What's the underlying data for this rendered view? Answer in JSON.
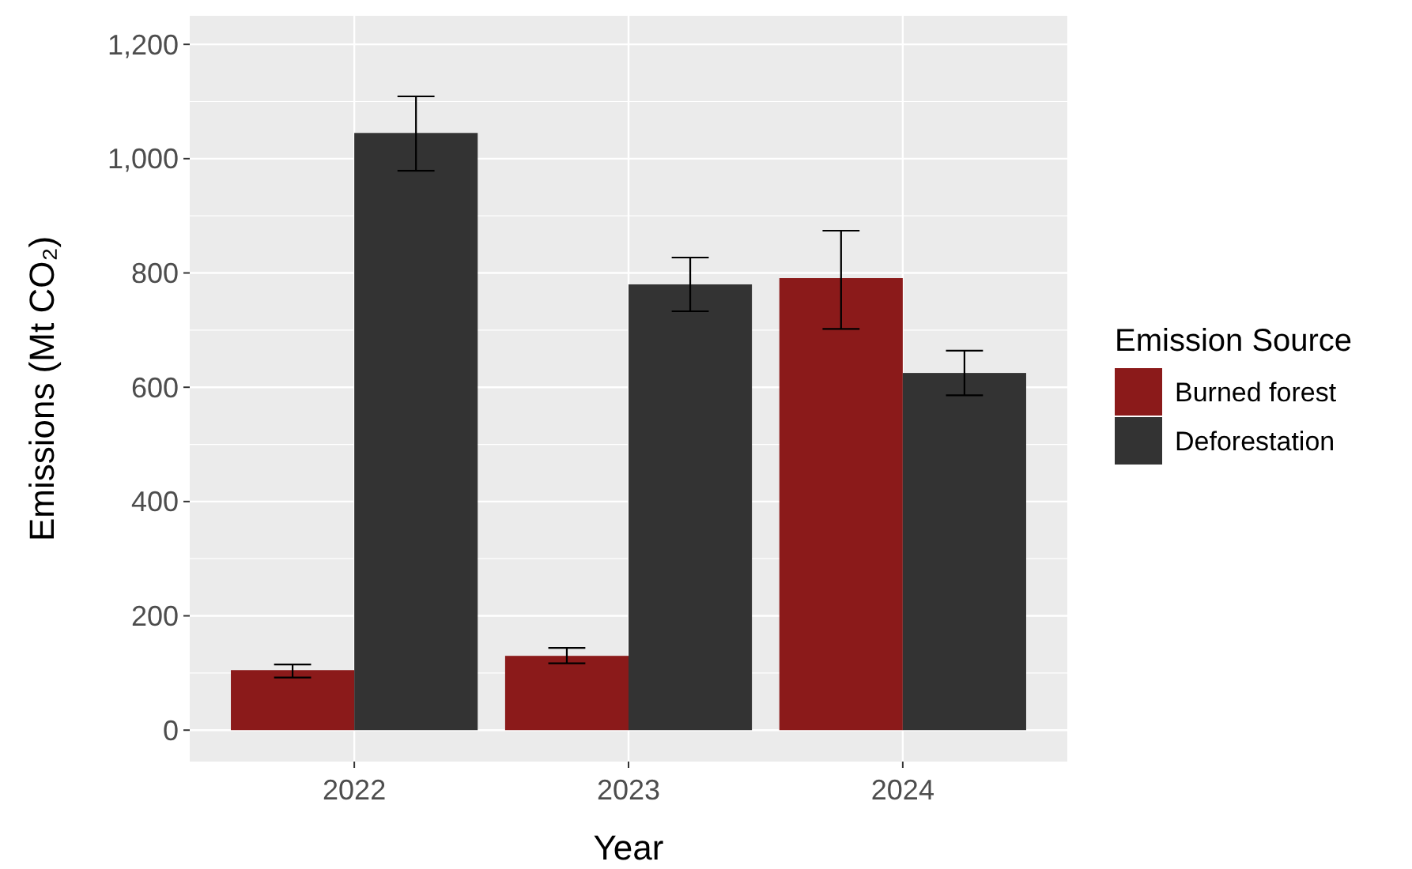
{
  "chart_data": {
    "type": "bar",
    "xlabel": "Year",
    "ylabel": "Emissions (Mt CO₂)",
    "legend_title": "Emission Source",
    "categories": [
      "2022",
      "2023",
      "2024"
    ],
    "series": [
      {
        "name": "Burned forest",
        "color": "#8b1a1a",
        "values": [
          105,
          130,
          791
        ],
        "errors": [
          [
            92,
            115
          ],
          [
            117,
            144
          ],
          [
            702,
            874
          ]
        ]
      },
      {
        "name": "Deforestation",
        "color": "#333333",
        "values": [
          1045,
          780,
          625
        ],
        "errors": [
          [
            979,
            1109
          ],
          [
            733,
            827
          ],
          [
            586,
            664
          ]
        ]
      }
    ],
    "ylim": [
      -55,
      1250
    ],
    "yticks": [
      0,
      200,
      400,
      600,
      800,
      {
        "value": 1000,
        "label": "1,000"
      },
      {
        "value": 1200,
        "label": "1,200"
      }
    ],
    "grid": true,
    "legend": "right"
  }
}
